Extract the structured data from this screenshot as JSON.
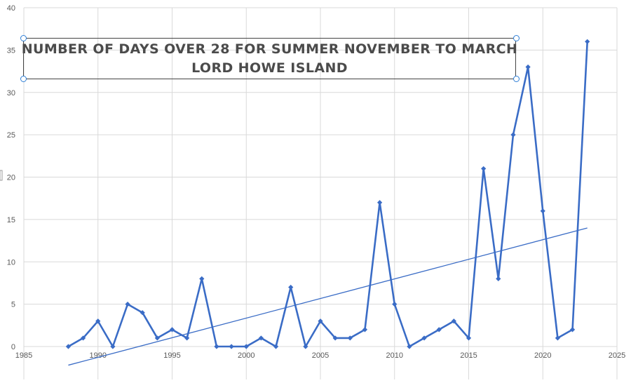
{
  "chart_data": {
    "type": "line",
    "title_lines": [
      "NUMBER OF DAYS OVER 28 FOR SUMMER NOVEMBER TO MARCH",
      "LORD HOWE ISLAND"
    ],
    "xlim": [
      1985,
      2025
    ],
    "ylim": [
      0,
      40
    ],
    "x_ticks": [
      "1985",
      "1990",
      "1995",
      "2000",
      "2005",
      "2010",
      "2015",
      "2020",
      "2025"
    ],
    "y_ticks": [
      "0",
      "5",
      "10",
      "15",
      "20",
      "25",
      "30",
      "35",
      "40"
    ],
    "grid": true,
    "series": [
      {
        "color": "#3a6cc6",
        "marker": "diamond",
        "x": [
          1988,
          1989,
          1990,
          1991,
          1992,
          1993,
          1994,
          1995,
          1996,
          1997,
          1998,
          1999,
          2000,
          2001,
          2002,
          2003,
          2004,
          2005,
          2006,
          2007,
          2008,
          2009,
          2010,
          2011,
          2012,
          2013,
          2014,
          2015,
          2016,
          2017,
          2018,
          2019,
          2020,
          2021,
          2022,
          2023
        ],
        "y": [
          0,
          1,
          3,
          0,
          5,
          4,
          1,
          2,
          1,
          8,
          0,
          0,
          0,
          1,
          0,
          7,
          0,
          3,
          1,
          1,
          2,
          17,
          5,
          0,
          1,
          2,
          3,
          1,
          21,
          8,
          25,
          33,
          16,
          1,
          2,
          36
        ]
      }
    ],
    "trendline": {
      "type": "linear",
      "color": "#3a6cc6",
      "x": [
        1988,
        2023
      ],
      "y": [
        -2.2,
        14
      ]
    }
  }
}
